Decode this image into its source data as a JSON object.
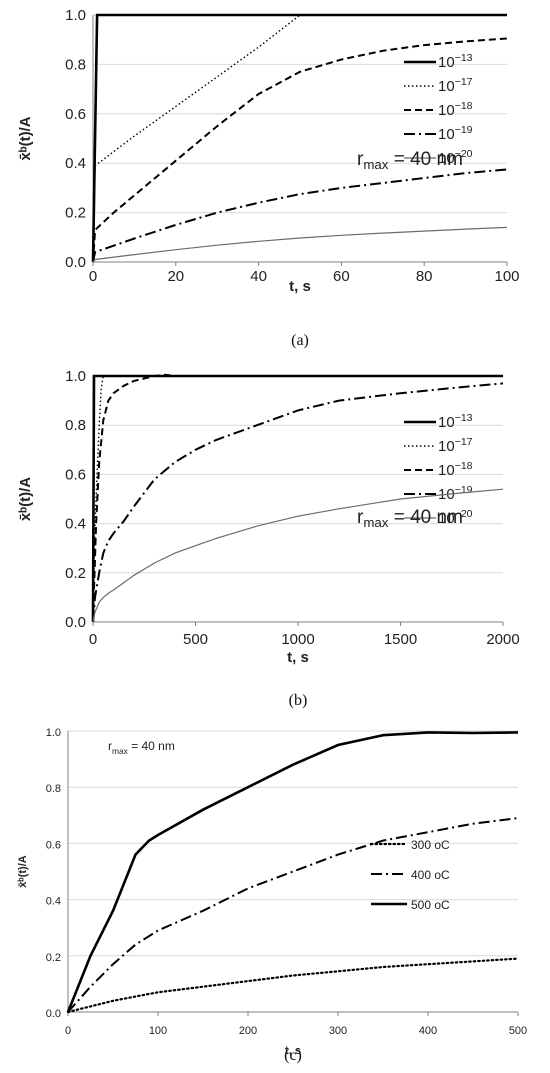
{
  "chart_data": [
    {
      "type": "line",
      "caption": "(a)",
      "xlabel": "t, s",
      "ylabel": "x̄ᵇ(t)/A",
      "xlim": [
        0,
        100
      ],
      "ylim": [
        0,
        1.0
      ],
      "xticks": [
        "0",
        "20",
        "40",
        "60",
        "80",
        "100"
      ],
      "yticks": [
        "0.0",
        "0.2",
        "0.4",
        "0.6",
        "0.8",
        "1.0"
      ],
      "annotation": {
        "prefix": "r",
        "sub": "max",
        "suffix": " = 40 nm"
      },
      "legend_position": "right",
      "series": [
        {
          "name": "10⁻¹³",
          "style": "solid-thick",
          "x": [
            0,
            1,
            100
          ],
          "y": [
            0,
            1.0,
            1.0
          ]
        },
        {
          "name": "10⁻¹⁷",
          "style": "dotted",
          "x": [
            0,
            0.5,
            10,
            20,
            30,
            40,
            50,
            100
          ],
          "y": [
            0,
            0.39,
            0.51,
            0.63,
            0.75,
            0.87,
            1.0,
            1.0
          ]
        },
        {
          "name": "10⁻¹⁸",
          "style": "dashed",
          "x": [
            0,
            0.5,
            5,
            10,
            20,
            30,
            40,
            50,
            60,
            70,
            80,
            90,
            100
          ],
          "y": [
            0,
            0.13,
            0.2,
            0.27,
            0.41,
            0.55,
            0.68,
            0.77,
            0.82,
            0.855,
            0.878,
            0.893,
            0.905
          ]
        },
        {
          "name": "10⁻¹⁹",
          "style": "dashdot",
          "x": [
            0,
            0.5,
            10,
            20,
            30,
            40,
            50,
            60,
            70,
            80,
            90,
            100
          ],
          "y": [
            0,
            0.04,
            0.095,
            0.15,
            0.2,
            0.24,
            0.275,
            0.3,
            0.32,
            0.34,
            0.36,
            0.375
          ]
        },
        {
          "name": "10⁻²⁰",
          "style": "thin",
          "x": [
            0,
            0.5,
            10,
            20,
            30,
            40,
            50,
            60,
            70,
            80,
            90,
            100
          ],
          "y": [
            0,
            0.01,
            0.03,
            0.05,
            0.068,
            0.084,
            0.097,
            0.108,
            0.117,
            0.125,
            0.133,
            0.14
          ]
        }
      ]
    },
    {
      "type": "line",
      "caption": "(b)",
      "xlabel": "t, s",
      "ylabel": "x̄ᵇ(t)/A",
      "xlim": [
        0,
        2000
      ],
      "ylim": [
        0,
        1.0
      ],
      "xticks": [
        "0",
        "500",
        "1000",
        "1500",
        "2000"
      ],
      "yticks": [
        "0.0",
        "0.2",
        "0.4",
        "0.6",
        "0.8",
        "1.0"
      ],
      "annotation": {
        "prefix": "r",
        "sub": "max",
        "suffix": " = 40 nm"
      },
      "legend_position": "right",
      "series": [
        {
          "name": "10⁻¹³",
          "style": "solid-thick",
          "x": [
            0,
            5,
            2000
          ],
          "y": [
            0,
            1.0,
            1.0
          ]
        },
        {
          "name": "10⁻¹⁷",
          "style": "dotted",
          "x": [
            0,
            10,
            20,
            30,
            40,
            50,
            2000
          ],
          "y": [
            0,
            0.4,
            0.6,
            0.8,
            0.95,
            1.0,
            1.0
          ]
        },
        {
          "name": "10⁻¹⁸",
          "style": "dashed",
          "x": [
            0,
            15,
            30,
            50,
            75,
            100,
            150,
            200,
            300,
            350,
            400,
            2000
          ],
          "y": [
            0,
            0.4,
            0.65,
            0.82,
            0.9,
            0.93,
            0.96,
            0.98,
            1.0,
            1.005,
            1.0,
            1.0
          ]
        },
        {
          "name": "10⁻¹⁹",
          "style": "dashdot",
          "x": [
            0,
            10,
            30,
            50,
            75,
            100,
            150,
            200,
            300,
            400,
            500,
            600,
            800,
            1000,
            1200,
            1500,
            1800,
            2000
          ],
          "y": [
            0,
            0.1,
            0.2,
            0.28,
            0.33,
            0.36,
            0.41,
            0.47,
            0.58,
            0.65,
            0.7,
            0.74,
            0.8,
            0.86,
            0.9,
            0.93,
            0.955,
            0.97
          ]
        },
        {
          "name": "10⁻²⁰",
          "style": "thin",
          "x": [
            0,
            10,
            30,
            50,
            80,
            100,
            150,
            200,
            300,
            400,
            500,
            600,
            800,
            1000,
            1200,
            1500,
            1800,
            2000
          ],
          "y": [
            0,
            0.04,
            0.08,
            0.1,
            0.12,
            0.13,
            0.16,
            0.19,
            0.24,
            0.28,
            0.31,
            0.34,
            0.39,
            0.43,
            0.46,
            0.5,
            0.525,
            0.54
          ]
        }
      ]
    },
    {
      "type": "line",
      "caption": "(c)",
      "xlabel": "t, s",
      "ylabel": "x̄ᵇ(t)/A",
      "xlim": [
        0,
        500
      ],
      "ylim": [
        0,
        1.0
      ],
      "xticks": [
        "0",
        "100",
        "200",
        "300",
        "400",
        "500"
      ],
      "yticks": [
        "0.0",
        "0.2",
        "0.4",
        "0.6",
        "0.8",
        "1.0"
      ],
      "annotation": {
        "prefix": "r",
        "sub": "max",
        "suffix": " = 40 nm"
      },
      "legend_position": "right",
      "series": [
        {
          "name": "300 oC",
          "style": "dotted-bold",
          "x": [
            0,
            25,
            50,
            75,
            100,
            150,
            200,
            250,
            300,
            350,
            400,
            450,
            500
          ],
          "y": [
            0,
            0.02,
            0.04,
            0.055,
            0.07,
            0.09,
            0.11,
            0.13,
            0.145,
            0.16,
            0.17,
            0.18,
            0.19
          ]
        },
        {
          "name": "400 oC",
          "style": "dashdot",
          "x": [
            0,
            25,
            50,
            75,
            100,
            150,
            200,
            250,
            300,
            350,
            400,
            450,
            500
          ],
          "y": [
            0,
            0.09,
            0.17,
            0.24,
            0.29,
            0.36,
            0.44,
            0.5,
            0.56,
            0.61,
            0.64,
            0.67,
            0.69
          ]
        },
        {
          "name": "500 oC",
          "style": "solid-thick",
          "x": [
            0,
            25,
            50,
            60,
            75,
            90,
            100,
            150,
            200,
            250,
            300,
            350,
            400,
            450,
            500
          ],
          "y": [
            0,
            0.2,
            0.36,
            0.44,
            0.56,
            0.61,
            0.63,
            0.72,
            0.8,
            0.88,
            0.95,
            0.985,
            0.995,
            0.993,
            0.995
          ]
        }
      ]
    }
  ]
}
